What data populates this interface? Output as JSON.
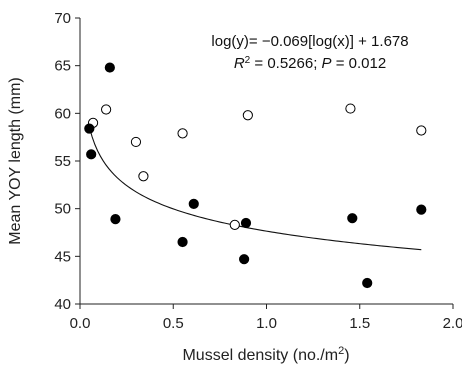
{
  "chart_data": {
    "type": "scatter",
    "xlabel": "Mussel density (no./m",
    "xlabel_sup": "2",
    "xlabel_end": ")",
    "ylabel": "Mean YOY length (mm)",
    "xlim": [
      0.0,
      2.0
    ],
    "ylim": [
      40,
      70
    ],
    "xticks": [
      "0.0",
      "0.5",
      "1.0",
      "1.5",
      "2.0"
    ],
    "yticks": [
      "40",
      "45",
      "50",
      "55",
      "60",
      "65",
      "70"
    ],
    "grid": false,
    "annotation": {
      "line1": "log(y)= −0.069[log(x)] + 1.678",
      "r2_label": "R",
      "r2_sup": "2",
      "r2_value": " = 0.5266; ",
      "p_label": "P",
      "p_value": " = 0.012"
    },
    "series": [
      {
        "marker": "open-circle",
        "points": [
          {
            "x": 0.07,
            "y": 59.0
          },
          {
            "x": 0.14,
            "y": 60.4
          },
          {
            "x": 0.3,
            "y": 57.0
          },
          {
            "x": 0.34,
            "y": 53.4
          },
          {
            "x": 0.55,
            "y": 57.9
          },
          {
            "x": 0.83,
            "y": 48.3
          },
          {
            "x": 0.9,
            "y": 59.8
          },
          {
            "x": 1.45,
            "y": 60.5
          },
          {
            "x": 1.83,
            "y": 58.2
          }
        ]
      },
      {
        "marker": "filled-circle",
        "points": [
          {
            "x": 0.05,
            "y": 58.4
          },
          {
            "x": 0.06,
            "y": 55.7
          },
          {
            "x": 0.16,
            "y": 64.8
          },
          {
            "x": 0.19,
            "y": 48.9
          },
          {
            "x": 0.55,
            "y": 46.5
          },
          {
            "x": 0.61,
            "y": 50.5
          },
          {
            "x": 0.88,
            "y": 44.7
          },
          {
            "x": 0.89,
            "y": 48.5
          },
          {
            "x": 1.46,
            "y": 49.0
          },
          {
            "x": 1.54,
            "y": 42.2
          },
          {
            "x": 1.83,
            "y": 49.9
          }
        ]
      }
    ],
    "trendline": {
      "model": "log10(y) = a*log10(x) + b",
      "a": -0.069,
      "b": 1.678,
      "x_range": [
        0.05,
        1.83
      ]
    }
  }
}
